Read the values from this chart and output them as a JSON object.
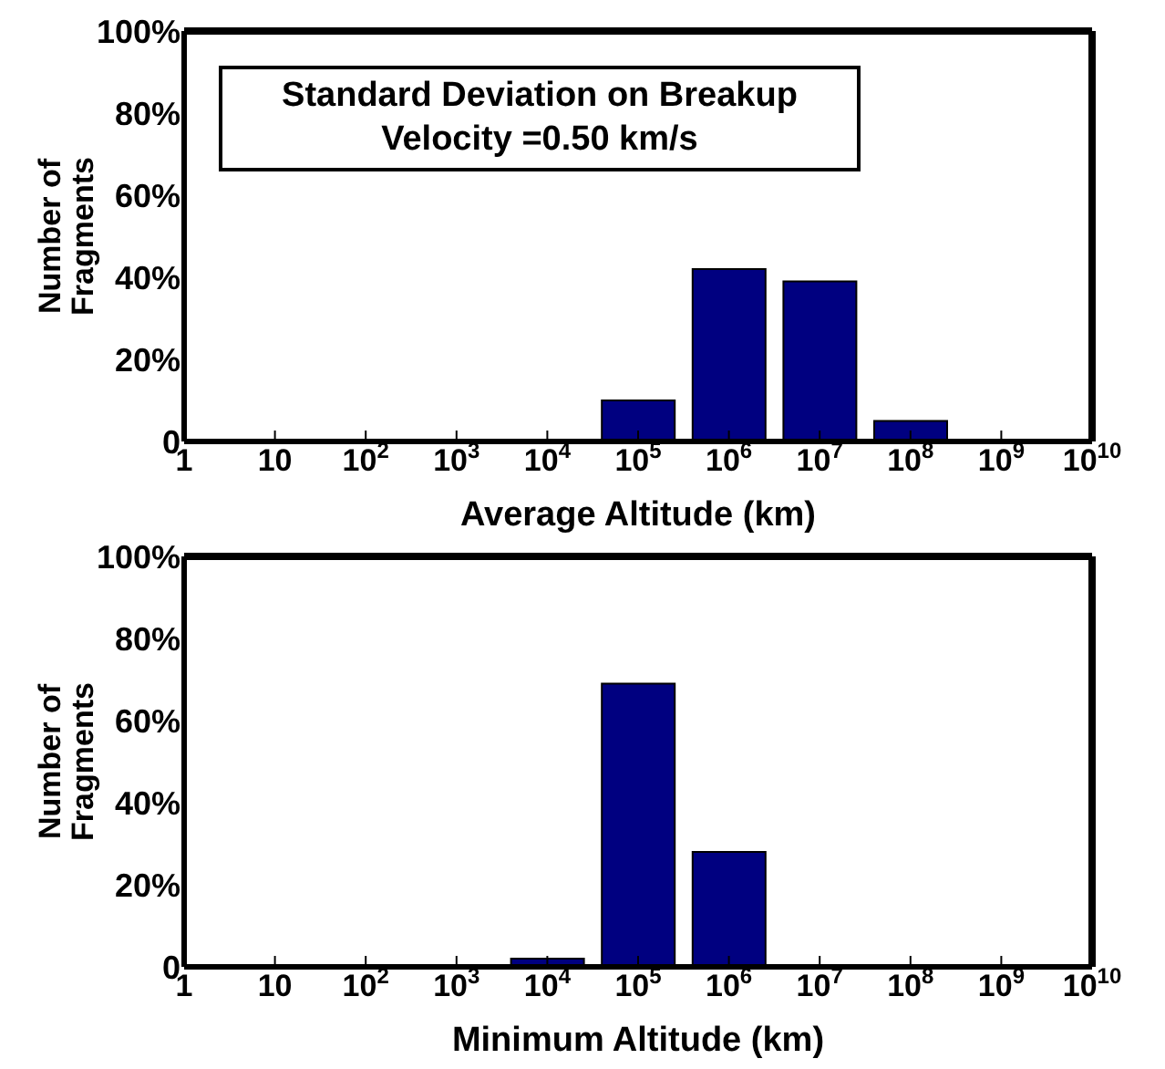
{
  "chart_data": [
    {
      "type": "bar",
      "categories": [
        "1",
        "10",
        "10$^{2}$",
        "10$^{3}$",
        "10$^{4}$",
        "10$^{5}$",
        "10$^{6}$",
        "10$^{7}$",
        "10$^{8}$",
        "10$^{9}$",
        "10$^{10}$"
      ],
      "values": [
        0,
        0,
        0,
        0,
        0,
        10,
        42,
        39,
        5,
        0,
        0
      ],
      "color": "#000080",
      "xlabel": "Average Altitude (km)",
      "ylabel": "Number of Fragments",
      "ylim": [
        0,
        100
      ],
      "yticks": [
        {
          "value": 0,
          "label": "0"
        },
        {
          "value": 20,
          "label": "20%"
        },
        {
          "value": 40,
          "label": "40%"
        },
        {
          "value": 60,
          "label": "60%"
        },
        {
          "value": 80,
          "label": "80%"
        },
        {
          "value": 100,
          "label": "100%"
        }
      ],
      "annotations": [
        "Standard Deviation on Breakup Velocity =0.50 km/s"
      ],
      "grid": false,
      "legend": false
    },
    {
      "type": "bar",
      "categories": [
        "1",
        "10",
        "10$^{2}$",
        "10$^{3}$",
        "10$^{4}$",
        "10$^{5}$",
        "10$^{6}$",
        "10$^{7}$",
        "10$^{8}$",
        "10$^{9}$",
        "10$^{10}$"
      ],
      "values": [
        0,
        0,
        0,
        0,
        2,
        69,
        28,
        0,
        0,
        0,
        0
      ],
      "color": "#000080",
      "xlabel": "Minimum Altitude (km)",
      "ylabel": "Number of Fragments",
      "ylim": [
        0,
        100
      ],
      "yticks": [
        {
          "value": 0,
          "label": "0"
        },
        {
          "value": 20,
          "label": "20%"
        },
        {
          "value": 40,
          "label": "40%"
        },
        {
          "value": 60,
          "label": "60%"
        },
        {
          "value": 80,
          "label": "80%"
        },
        {
          "value": 100,
          "label": "100%"
        }
      ],
      "grid": false,
      "legend": false
    }
  ]
}
